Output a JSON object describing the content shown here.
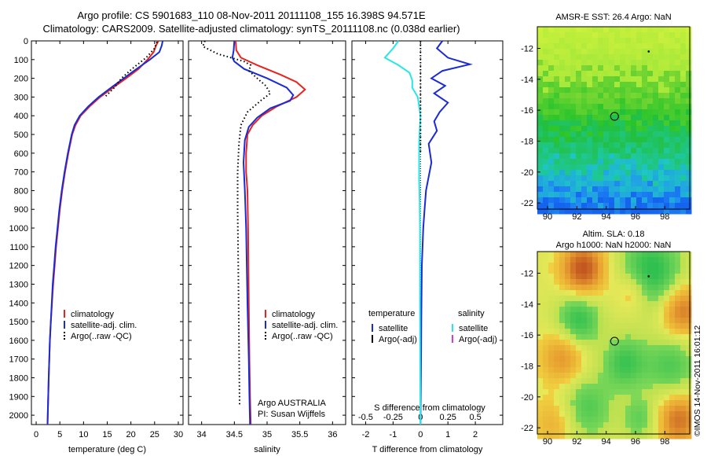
{
  "header": {
    "line1": "Argo profile: CS 5901683_110 08-Nov-2011 20111108_155 16.398S 94.571E",
    "line2": "Climatology: CARS2009. Satellite-adjusted climatology: synTS_20111108.nc (0.038d earlier)"
  },
  "colors": {
    "climatology": "#e8231e",
    "satellite": "#1a2bd6",
    "argo": "#000000",
    "salinity_sat": "#28e6e6",
    "argo_adj_sal": "#d040d0"
  },
  "chart_data": [
    {
      "id": "temperature",
      "type": "line",
      "xlabel": "temperature (deg C)",
      "xlim": [
        -1,
        31
      ],
      "xticks": [
        0,
        5,
        10,
        15,
        20,
        25,
        30
      ],
      "ylim": [
        0,
        2050
      ],
      "yticks": [
        0,
        100,
        200,
        300,
        400,
        500,
        600,
        700,
        800,
        900,
        1000,
        1100,
        1200,
        1300,
        1400,
        1500,
        1600,
        1700,
        1800,
        1900,
        2000
      ],
      "legend": {
        "placement": "lower-left",
        "entries": [
          "climatology",
          "satellite-adj. clim.",
          "Argo(..raw -QC)"
        ]
      },
      "series": [
        {
          "name": "climatology",
          "style": "solid",
          "color": "#e8231e",
          "x": [
            25.8,
            25.3,
            24.8,
            23.5,
            21.6,
            19.0,
            16.2,
            13.5,
            11.3,
            9.4,
            8.3,
            7.6,
            6.8,
            6.1,
            5.5,
            5.0,
            4.6,
            4.2,
            3.9,
            3.6,
            3.35,
            3.1,
            2.9,
            2.65,
            2.5,
            2.4
          ],
          "y": [
            0,
            25,
            60,
            100,
            150,
            200,
            250,
            300,
            350,
            400,
            450,
            500,
            600,
            700,
            800,
            900,
            1000,
            1100,
            1200,
            1300,
            1400,
            1500,
            1600,
            1800,
            1950,
            2050
          ]
        },
        {
          "name": "satellite-adj. clim.",
          "style": "solid",
          "color": "#1a2bd6",
          "x": [
            26.7,
            26.5,
            26.0,
            24.0,
            21.2,
            18.5,
            15.8,
            13.2,
            11.0,
            9.2,
            8.1,
            7.5,
            6.7,
            6.0,
            5.4,
            4.9,
            4.5,
            4.1,
            3.8,
            3.5,
            3.3,
            3.1,
            2.9,
            2.65,
            2.5,
            2.4
          ],
          "y": [
            0,
            25,
            60,
            100,
            150,
            200,
            250,
            300,
            350,
            400,
            450,
            500,
            600,
            700,
            800,
            900,
            1000,
            1100,
            1200,
            1300,
            1400,
            1500,
            1600,
            1800,
            1950,
            2050
          ]
        },
        {
          "name": "Argo(..raw -QC)",
          "style": "dotted",
          "color": "#000000",
          "x": [
            25.5,
            25.0,
            23.2,
            20.2,
            18.0,
            16.5,
            14.5
          ],
          "y": [
            5,
            40,
            90,
            150,
            200,
            250,
            300
          ]
        }
      ]
    },
    {
      "id": "salinity",
      "type": "line",
      "xlabel": "salinity",
      "xlim": [
        33.8,
        36.2
      ],
      "xticks": [
        34,
        34.5,
        35,
        35.5,
        36
      ],
      "ylim": [
        0,
        2050
      ],
      "legend": {
        "placement": "lower-right",
        "entries": [
          "climatology",
          "satellite-adj. clim.",
          "Argo(..raw -QC)"
        ]
      },
      "annotations": [
        "Argo AUSTRALIA",
        "PI: Susan Wijffels"
      ],
      "series": [
        {
          "name": "climatology",
          "style": "solid",
          "color": "#e8231e",
          "x": [
            34.52,
            34.53,
            34.6,
            34.85,
            35.2,
            35.45,
            35.58,
            35.45,
            35.15,
            34.92,
            34.78,
            34.7,
            34.68,
            34.68,
            34.7,
            34.71,
            34.72,
            34.73,
            34.74,
            34.75
          ],
          "y": [
            0,
            50,
            90,
            130,
            180,
            220,
            260,
            300,
            350,
            400,
            450,
            500,
            600,
            700,
            800,
            1000,
            1400,
            1700,
            1900,
            2050
          ]
        },
        {
          "name": "satellite-adj. clim.",
          "style": "solid",
          "color": "#1a2bd6",
          "x": [
            34.5,
            34.49,
            34.47,
            34.5,
            34.65,
            35.0,
            35.3,
            35.4,
            35.35,
            35.05,
            34.85,
            34.72,
            34.66,
            34.64,
            34.66,
            34.68,
            34.7,
            34.72,
            34.73,
            34.74
          ],
          "y": [
            0,
            50,
            90,
            110,
            150,
            200,
            250,
            290,
            320,
            360,
            410,
            460,
            530,
            650,
            800,
            1000,
            1400,
            1700,
            1900,
            2050
          ]
        },
        {
          "name": "Argo(..raw -QC)",
          "style": "dotted",
          "color": "#000000",
          "x": [
            34.05,
            34.02,
            34.25,
            34.45,
            34.65,
            34.75,
            34.72,
            34.85,
            34.98,
            35.05,
            34.9,
            34.7,
            34.6,
            34.57,
            34.55,
            34.55,
            34.56,
            34.57,
            34.58
          ],
          "y": [
            0,
            30,
            70,
            90,
            110,
            130,
            160,
            200,
            240,
            280,
            320,
            380,
            450,
            550,
            700,
            900,
            1200,
            1600,
            1950
          ]
        }
      ]
    },
    {
      "id": "difference",
      "type": "line",
      "xlabel": "T difference from climatology",
      "xlabel_top": "S difference from climatology",
      "xlim": [
        -2.5,
        3
      ],
      "xticks": [
        -2,
        -1,
        0,
        1,
        2
      ],
      "xticks_top": [
        -0.5,
        -0.25,
        0,
        0.25,
        0.5
      ],
      "ylim": [
        0,
        2050
      ],
      "legend": {
        "placement": "lower",
        "groups": [
          {
            "title": "temperature",
            "entries": [
              "satellite",
              "Argo(-adj)"
            ]
          },
          {
            "title": "salinity",
            "entries": [
              "satellite",
              "Argo(-adj)"
            ]
          }
        ]
      },
      "series": [
        {
          "name": "temperature satellite",
          "style": "solid",
          "color": "#1a2bd6",
          "x": [
            0.8,
            0.6,
            1.0,
            1.8,
            0.8,
            0.4,
            0.9,
            0.5,
            1.0,
            0.7,
            0.5,
            0.6,
            0.3,
            0.4,
            0.2,
            0.15,
            0.1,
            0.05,
            0.03,
            0.02,
            0.01,
            0
          ],
          "y": [
            0,
            40,
            90,
            125,
            160,
            200,
            240,
            280,
            330,
            380,
            430,
            480,
            550,
            650,
            800,
            900,
            1000,
            1200,
            1500,
            1700,
            1900,
            2050
          ]
        },
        {
          "name": "salinity satellite",
          "style": "solid",
          "color": "#28e6e6",
          "x": [
            -0.8,
            -1.0,
            -1.3,
            -0.8,
            -0.4,
            -0.3,
            -0.3,
            -0.1,
            -0.05,
            0,
            -0.02,
            -0.05,
            -0.05,
            -0.05,
            -0.03,
            -0.02,
            -0.02,
            -0.01,
            0
          ],
          "y": [
            0,
            40,
            90,
            130,
            170,
            210,
            250,
            300,
            350,
            400,
            450,
            550,
            650,
            750,
            850,
            1000,
            1400,
            1800,
            2050
          ]
        },
        {
          "name": "temperature Argo(-adj)",
          "style": "dotted",
          "color": "#000000",
          "x": [
            0,
            0,
            0,
            0
          ],
          "y": [
            0,
            200,
            400,
            600
          ]
        }
      ]
    }
  ],
  "sst_panel": {
    "title": "AMSR-E SST: 26.4 Argo: NaN",
    "x_ticks": [
      "90",
      "92",
      "94",
      "96",
      "98"
    ],
    "y_ticks": [
      "-12",
      "-14",
      "-16",
      "-18",
      "-20",
      "-22"
    ]
  },
  "sla_panel": {
    "title_line1": "Altim. SLA: 0.18",
    "title_line2": "Argo h1000: NaN h2000: NaN",
    "x_ticks": [
      "90",
      "92",
      "94",
      "96",
      "98"
    ],
    "y_ticks": [
      "-12",
      "-14",
      "-16",
      "-18",
      "-20",
      "-22"
    ]
  },
  "credit": "©IMOS 14-Nov-2011 16:01:12"
}
